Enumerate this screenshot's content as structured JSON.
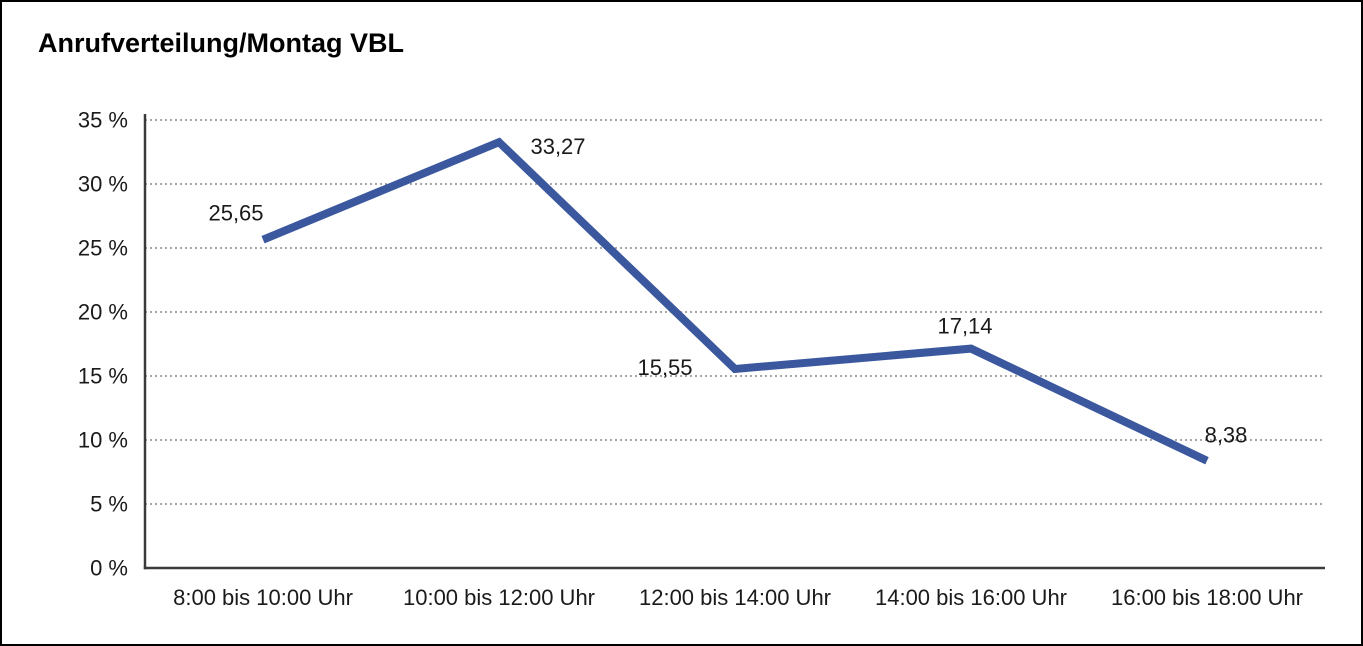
{
  "window": {
    "background_color": "#ffffff",
    "border_color": "#000000"
  },
  "title": "Anrufverteilung/Montag VBL",
  "chart_data": {
    "type": "line",
    "title": "Anrufverteilung/Montag VBL",
    "categories": [
      "8:00 bis 10:00 Uhr",
      "10:00 bis 12:00 Uhr",
      "12:00 bis 14:00 Uhr",
      "14:00 bis 16:00 Uhr",
      "16:00 bis 18:00 Uhr"
    ],
    "values": [
      25.65,
      33.27,
      15.55,
      17.14,
      8.38
    ],
    "point_labels": [
      "25,65",
      "33,27",
      "15,55",
      "17,14",
      "8,38"
    ],
    "xlabel": "",
    "ylabel": "",
    "ylim": [
      0,
      35
    ],
    "y_ticks": [
      0,
      5,
      10,
      15,
      20,
      25,
      30,
      35
    ],
    "y_tick_labels": [
      "0 %",
      "5 %",
      "10 %",
      "15 %",
      "20 %",
      "25 %",
      "30 %",
      "35 %"
    ],
    "grid": "horizontal-dotted",
    "legend": "none",
    "colors": {
      "line": "#3B589F",
      "axis": "#3a3a3a",
      "gridline": "#8a8a8a",
      "text": "#1a1a1a"
    }
  }
}
